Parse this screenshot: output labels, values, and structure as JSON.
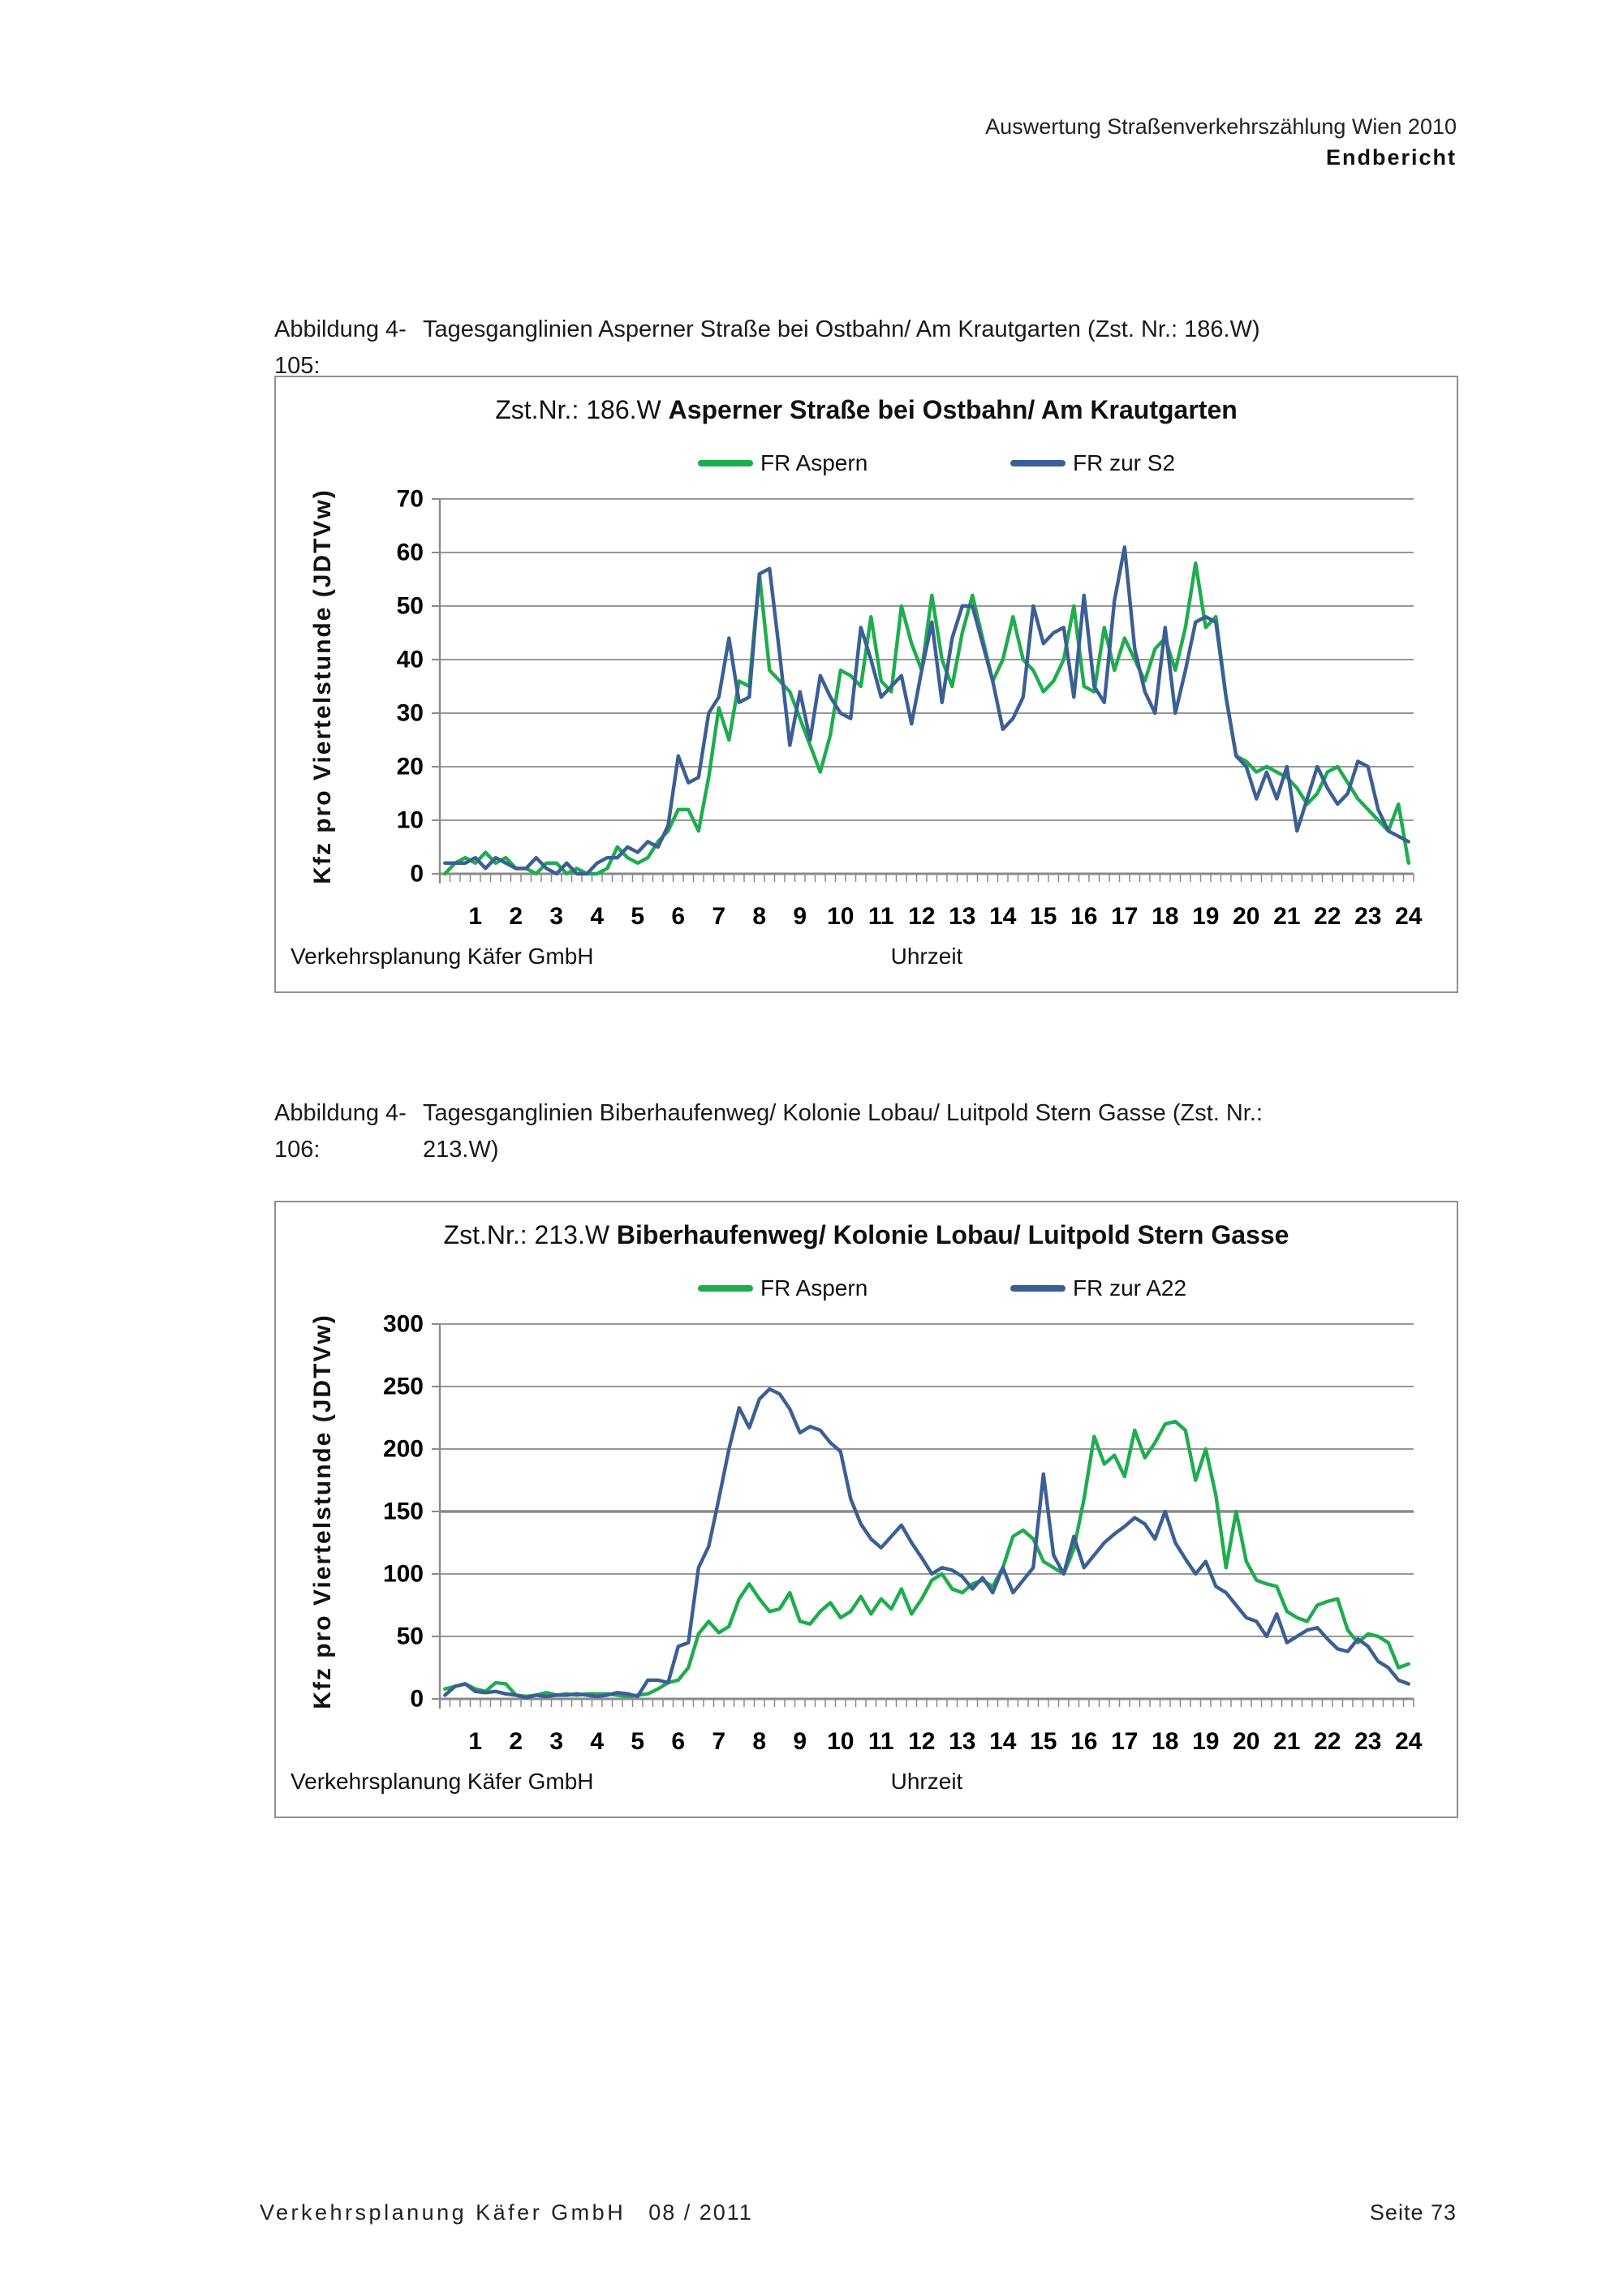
{
  "header": {
    "line1": "Auswertung Straßenverkehrszählung Wien 2010",
    "line2": "Endbericht"
  },
  "captions": {
    "fig1_label": "Abbildung 4-105:",
    "fig1_text": "Tagesganglinien Asperner Straße bei Ostbahn/ Am Krautgarten (Zst. Nr.: 186.W)",
    "fig2_label": "Abbildung 4-106:",
    "fig2_text_line1": "Tagesganglinien Biberhaufenweg/ Kolonie Lobau/ Luitpold Stern Gasse (Zst. Nr.:",
    "fig2_text_line2": "213.W)"
  },
  "footer": {
    "company": "Verkehrsplanung Käfer GmbH",
    "date": "08 / 2011",
    "page": "Seite 73"
  },
  "colors": {
    "green": "#1FAC4F",
    "blue": "#3B5F95",
    "grid": "#8a8a8a",
    "axis": "#808080"
  },
  "chart_data": [
    {
      "type": "line",
      "title_prefix": "Zst.Nr.: 186.W",
      "title_bold": "Asperner Straße bei Ostbahn/ Am Krautgarten",
      "ylabel": "Kfz pro Viertelstunde (JDTVw)",
      "xlabel": "Uhrzeit",
      "watermark": "Verkehrsplanung Käfer GmbH",
      "legend_position": "top",
      "grid": true,
      "ylim": [
        0,
        70
      ],
      "yticks": [
        0,
        10,
        20,
        30,
        40,
        50,
        60,
        70
      ],
      "xticks": [
        1,
        2,
        3,
        4,
        5,
        6,
        7,
        8,
        9,
        10,
        11,
        12,
        13,
        14,
        15,
        16,
        17,
        18,
        19,
        20,
        21,
        22,
        23,
        24
      ],
      "x_unit": "hour (quarter-hour resolution, 96 points from 0:15 to 24:00)",
      "series": [
        {
          "name": "FR Aspern",
          "color": "#1FAC4F",
          "values": [
            0,
            2,
            3,
            2,
            4,
            2,
            3,
            1,
            1,
            0,
            2,
            2,
            0,
            1,
            0,
            0,
            1,
            5,
            3,
            2,
            3,
            6,
            8,
            12,
            12,
            8,
            18,
            31,
            25,
            36,
            35,
            56,
            38,
            36,
            34,
            29,
            24,
            19,
            26,
            38,
            37,
            35,
            48,
            36,
            34,
            50,
            43,
            38,
            52,
            40,
            35,
            45,
            52,
            44,
            36,
            40,
            48,
            40,
            38,
            34,
            36,
            40,
            50,
            35,
            34,
            46,
            38,
            44,
            40,
            36,
            42,
            44,
            38,
            46,
            58,
            46,
            48,
            33,
            22,
            21,
            19,
            20,
            19,
            18,
            16,
            13,
            15,
            19,
            20,
            17,
            14,
            12,
            10,
            8,
            13,
            2
          ]
        },
        {
          "name": "FR zur S2",
          "color": "#3B5F95",
          "values": [
            2,
            2,
            2,
            3,
            1,
            3,
            2,
            1,
            1,
            3,
            1,
            0,
            2,
            0,
            0,
            2,
            3,
            3,
            5,
            4,
            6,
            5,
            9,
            22,
            17,
            18,
            30,
            33,
            44,
            32,
            33,
            56,
            57,
            41,
            24,
            34,
            25,
            37,
            33,
            30,
            29,
            46,
            40,
            33,
            35,
            37,
            28,
            38,
            47,
            32,
            44,
            50,
            50,
            43,
            36,
            27,
            29,
            33,
            50,
            43,
            45,
            46,
            33,
            52,
            35,
            32,
            51,
            61,
            42,
            34,
            30,
            46,
            30,
            38,
            47,
            48,
            47,
            33,
            22,
            20,
            14,
            19,
            14,
            20,
            8,
            14,
            20,
            16,
            13,
            15,
            21,
            20,
            12,
            8,
            7,
            6
          ]
        }
      ]
    },
    {
      "type": "line",
      "title_prefix": "Zst.Nr.: 213.W",
      "title_bold": "Biberhaufenweg/ Kolonie Lobau/ Luitpold Stern Gasse",
      "ylabel": "Kfz pro Viertelstunde (JDTVw)",
      "xlabel": "Uhrzeit",
      "watermark": "Verkehrsplanung Käfer GmbH",
      "legend_position": "top",
      "grid": true,
      "bold_gridline": 150,
      "ylim": [
        0,
        300
      ],
      "yticks": [
        0,
        50,
        100,
        150,
        200,
        250,
        300
      ],
      "xticks": [
        1,
        2,
        3,
        4,
        5,
        6,
        7,
        8,
        9,
        10,
        11,
        12,
        13,
        14,
        15,
        16,
        17,
        18,
        19,
        20,
        21,
        22,
        23,
        24
      ],
      "x_unit": "hour (quarter-hour resolution, 96 points from 0:15 to 24:00)",
      "series": [
        {
          "name": "FR Aspern",
          "color": "#1FAC4F",
          "values": [
            8,
            10,
            12,
            8,
            6,
            13,
            12,
            3,
            2,
            3,
            5,
            3,
            4,
            3,
            4,
            4,
            4,
            3,
            2,
            3,
            4,
            8,
            13,
            15,
            25,
            52,
            62,
            53,
            58,
            80,
            92,
            80,
            70,
            72,
            85,
            62,
            60,
            70,
            77,
            65,
            70,
            82,
            68,
            80,
            72,
            88,
            68,
            80,
            95,
            100,
            88,
            85,
            92,
            95,
            90,
            105,
            130,
            135,
            128,
            110,
            105,
            100,
            120,
            160,
            210,
            188,
            195,
            178,
            215,
            193,
            205,
            220,
            222,
            215,
            175,
            200,
            163,
            105,
            150,
            110,
            95,
            92,
            90,
            70,
            65,
            62,
            75,
            78,
            80,
            55,
            45,
            52,
            50,
            45,
            25,
            28
          ]
        },
        {
          "name": "FR zur A22",
          "color": "#3B5F95",
          "values": [
            3,
            10,
            12,
            6,
            5,
            6,
            4,
            3,
            1,
            3,
            2,
            3,
            3,
            4,
            3,
            2,
            3,
            5,
            4,
            2,
            15,
            15,
            13,
            42,
            45,
            105,
            122,
            160,
            200,
            233,
            217,
            240,
            248,
            244,
            232,
            213,
            218,
            215,
            205,
            198,
            160,
            140,
            128,
            121,
            130,
            139,
            125,
            113,
            100,
            105,
            103,
            98,
            88,
            97,
            85,
            105,
            85,
            95,
            105,
            180,
            115,
            100,
            130,
            105,
            115,
            125,
            132,
            138,
            145,
            140,
            128,
            150,
            125,
            112,
            100,
            110,
            90,
            85,
            75,
            65,
            62,
            50,
            68,
            45,
            50,
            55,
            57,
            48,
            40,
            38,
            48,
            42,
            30,
            25,
            15,
            12
          ]
        }
      ]
    }
  ]
}
